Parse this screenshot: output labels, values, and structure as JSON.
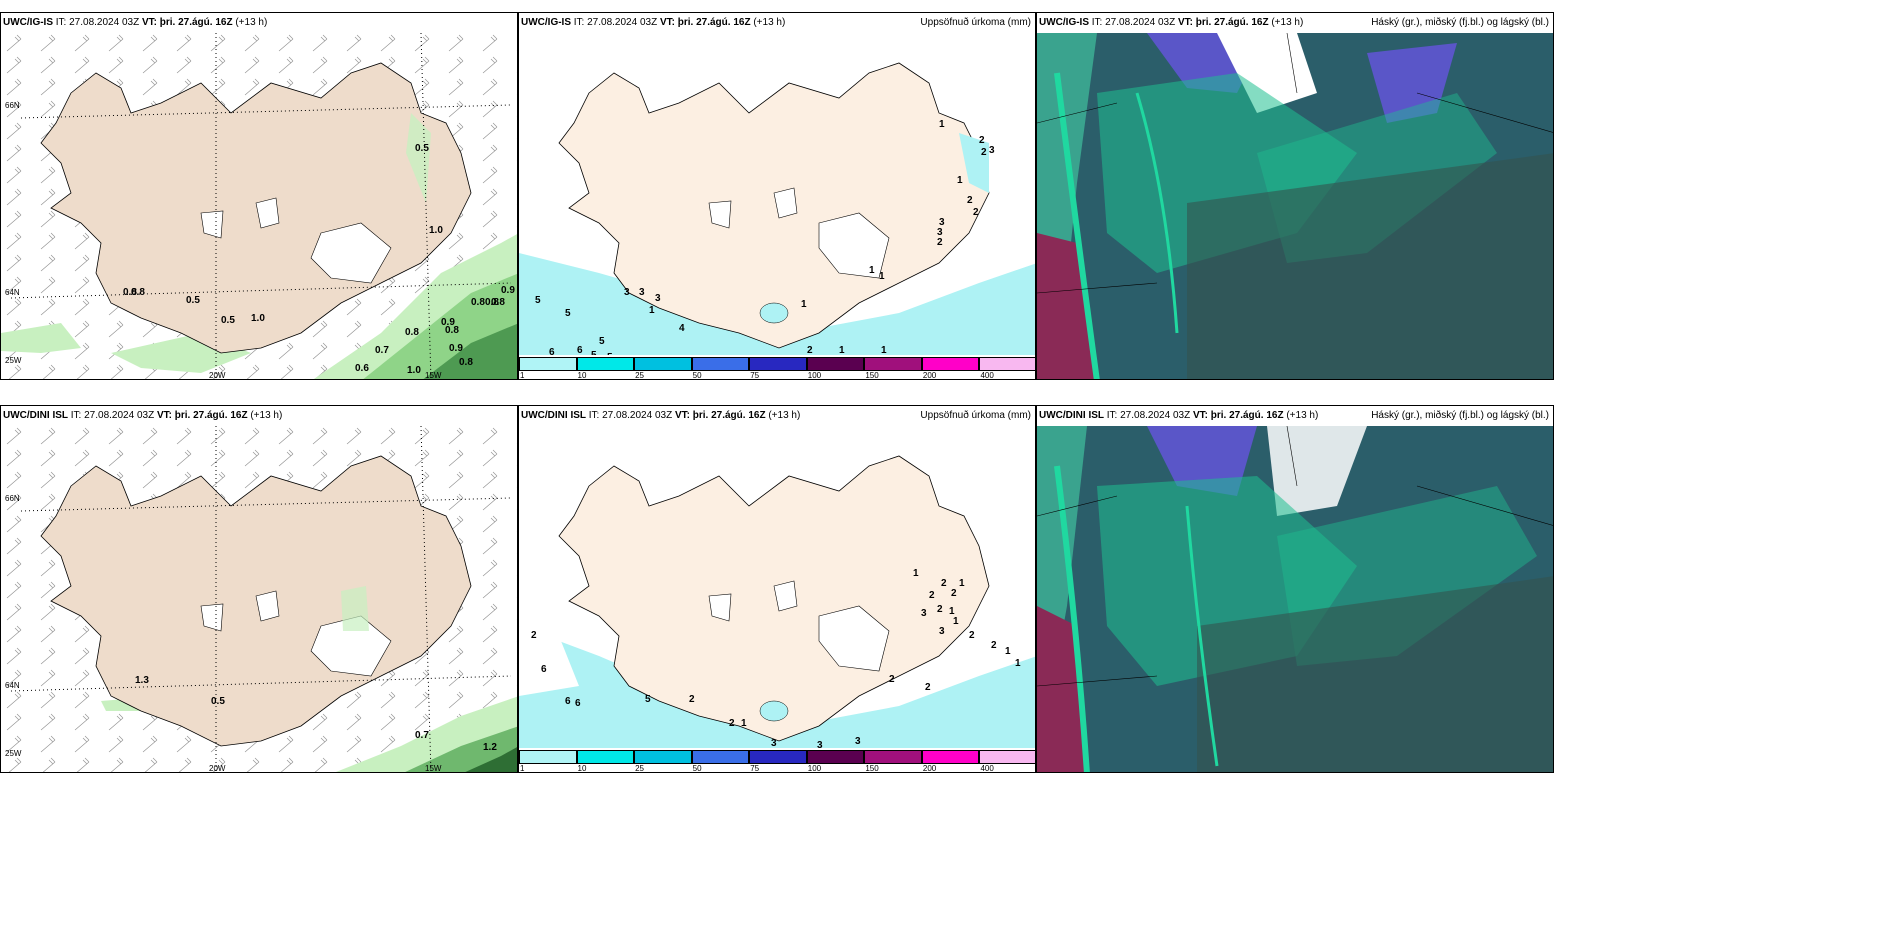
{
  "rows": [
    {
      "model": "UWC/IG-IS",
      "wind_title": {
        "model": "UWC/IG-IS",
        "it_label": "IT:",
        "it_value": "27.08.2024 03Z",
        "vt_label": "VT:",
        "vt_value": "þri. 27.ágú. 16Z",
        "lead": "(+13 h)"
      },
      "precip_title": {
        "model": "UWC/IG-IS",
        "it_label": "IT:",
        "it_value": "27.08.2024 03Z",
        "vt_label": "VT:",
        "vt_value": "þri. 27.ágú. 16Z",
        "lead": "(+13 h)",
        "right": "Uppsöfnuð úrkoma (mm)"
      },
      "cloud_title": {
        "model": "UWC/IG-IS",
        "it_label": "IT:",
        "it_value": "27.08.2024 03Z",
        "vt_label": "VT:",
        "vt_value": "þri. 27.ágú. 16Z",
        "lead": "(+13 h)",
        "right": "Háský (gr.), miðský (fj.bl.) og lágský (bl.)"
      },
      "wind_values": [
        "0.5",
        "1.0",
        "0.8",
        "0.8",
        "0.5",
        "0.5",
        "1.0",
        "0.8",
        "0.9",
        "0.8",
        "0.8",
        "0.9",
        "0.9",
        "0.8",
        "0.7",
        "0.8",
        "0.6",
        "1.0",
        "0.8"
      ],
      "precip_values": [
        "1",
        "2",
        "2",
        "3",
        "1",
        "2",
        "2",
        "3",
        "3",
        "2",
        "1",
        "1",
        "3",
        "3",
        "3",
        "1",
        "4",
        "5",
        "5",
        "5",
        "6",
        "6",
        "5",
        "5",
        "1",
        "2",
        "1",
        "1"
      ]
    },
    {
      "model": "UWC/DINI ISL",
      "wind_title": {
        "model": "UWC/DINI ISL",
        "it_label": "IT:",
        "it_value": "27.08.2024 03Z",
        "vt_label": "VT:",
        "vt_value": "þri. 27.ágú. 16Z",
        "lead": "(+13 h)"
      },
      "precip_title": {
        "model": "UWC/DINI ISL",
        "it_label": "IT:",
        "it_value": "27.08.2024 03Z",
        "vt_label": "VT:",
        "vt_value": "þri. 27.ágú. 16Z",
        "lead": "(+13 h)",
        "right": "Uppsöfnuð úrkoma (mm)"
      },
      "cloud_title": {
        "model": "UWC/DINI ISL",
        "it_label": "IT:",
        "it_value": "27.08.2024 03Z",
        "vt_label": "VT:",
        "vt_value": "þri. 27.ágú. 16Z",
        "lead": "(+13 h)",
        "right": "Háský (gr.), miðský (fj.bl.) og lágský (bl.)"
      },
      "wind_values": [
        "1.3",
        "0.5",
        "0.7",
        "1.2"
      ],
      "precip_values": [
        "1",
        "2",
        "2",
        "1",
        "3",
        "2",
        "2",
        "1",
        "1",
        "3",
        "2",
        "2",
        "1",
        "1",
        "2",
        "2",
        "2",
        "6",
        "6",
        "6",
        "5",
        "3",
        "3",
        "3",
        "2",
        "1",
        "2"
      ]
    }
  ],
  "axis_labels": {
    "lat_top": "66N",
    "lat_mid": "64N",
    "lat_bot": "25W",
    "lon_left": "20W",
    "lon_right": "15W"
  },
  "colorbar": {
    "ticks": [
      "1",
      "10",
      "25",
      "50",
      "75",
      "100",
      "150",
      "200",
      "400"
    ],
    "colors": [
      "#b0f4f6",
      "#00e8e8",
      "#00c0e0",
      "#3a6ee8",
      "#2828c0",
      "#5a0050",
      "#a0107c",
      "#ff00c8",
      "#f8b8f0"
    ]
  },
  "colors": {
    "land": "#f5e6d6",
    "land_wind": "#eedccb",
    "sea_precip": "#aef2f4",
    "green_light": "#c8f0c0",
    "green_dark": "#3a7a40",
    "cloud_teal": "#1e6e76",
    "cloud_purple": "#5a56c8"
  }
}
